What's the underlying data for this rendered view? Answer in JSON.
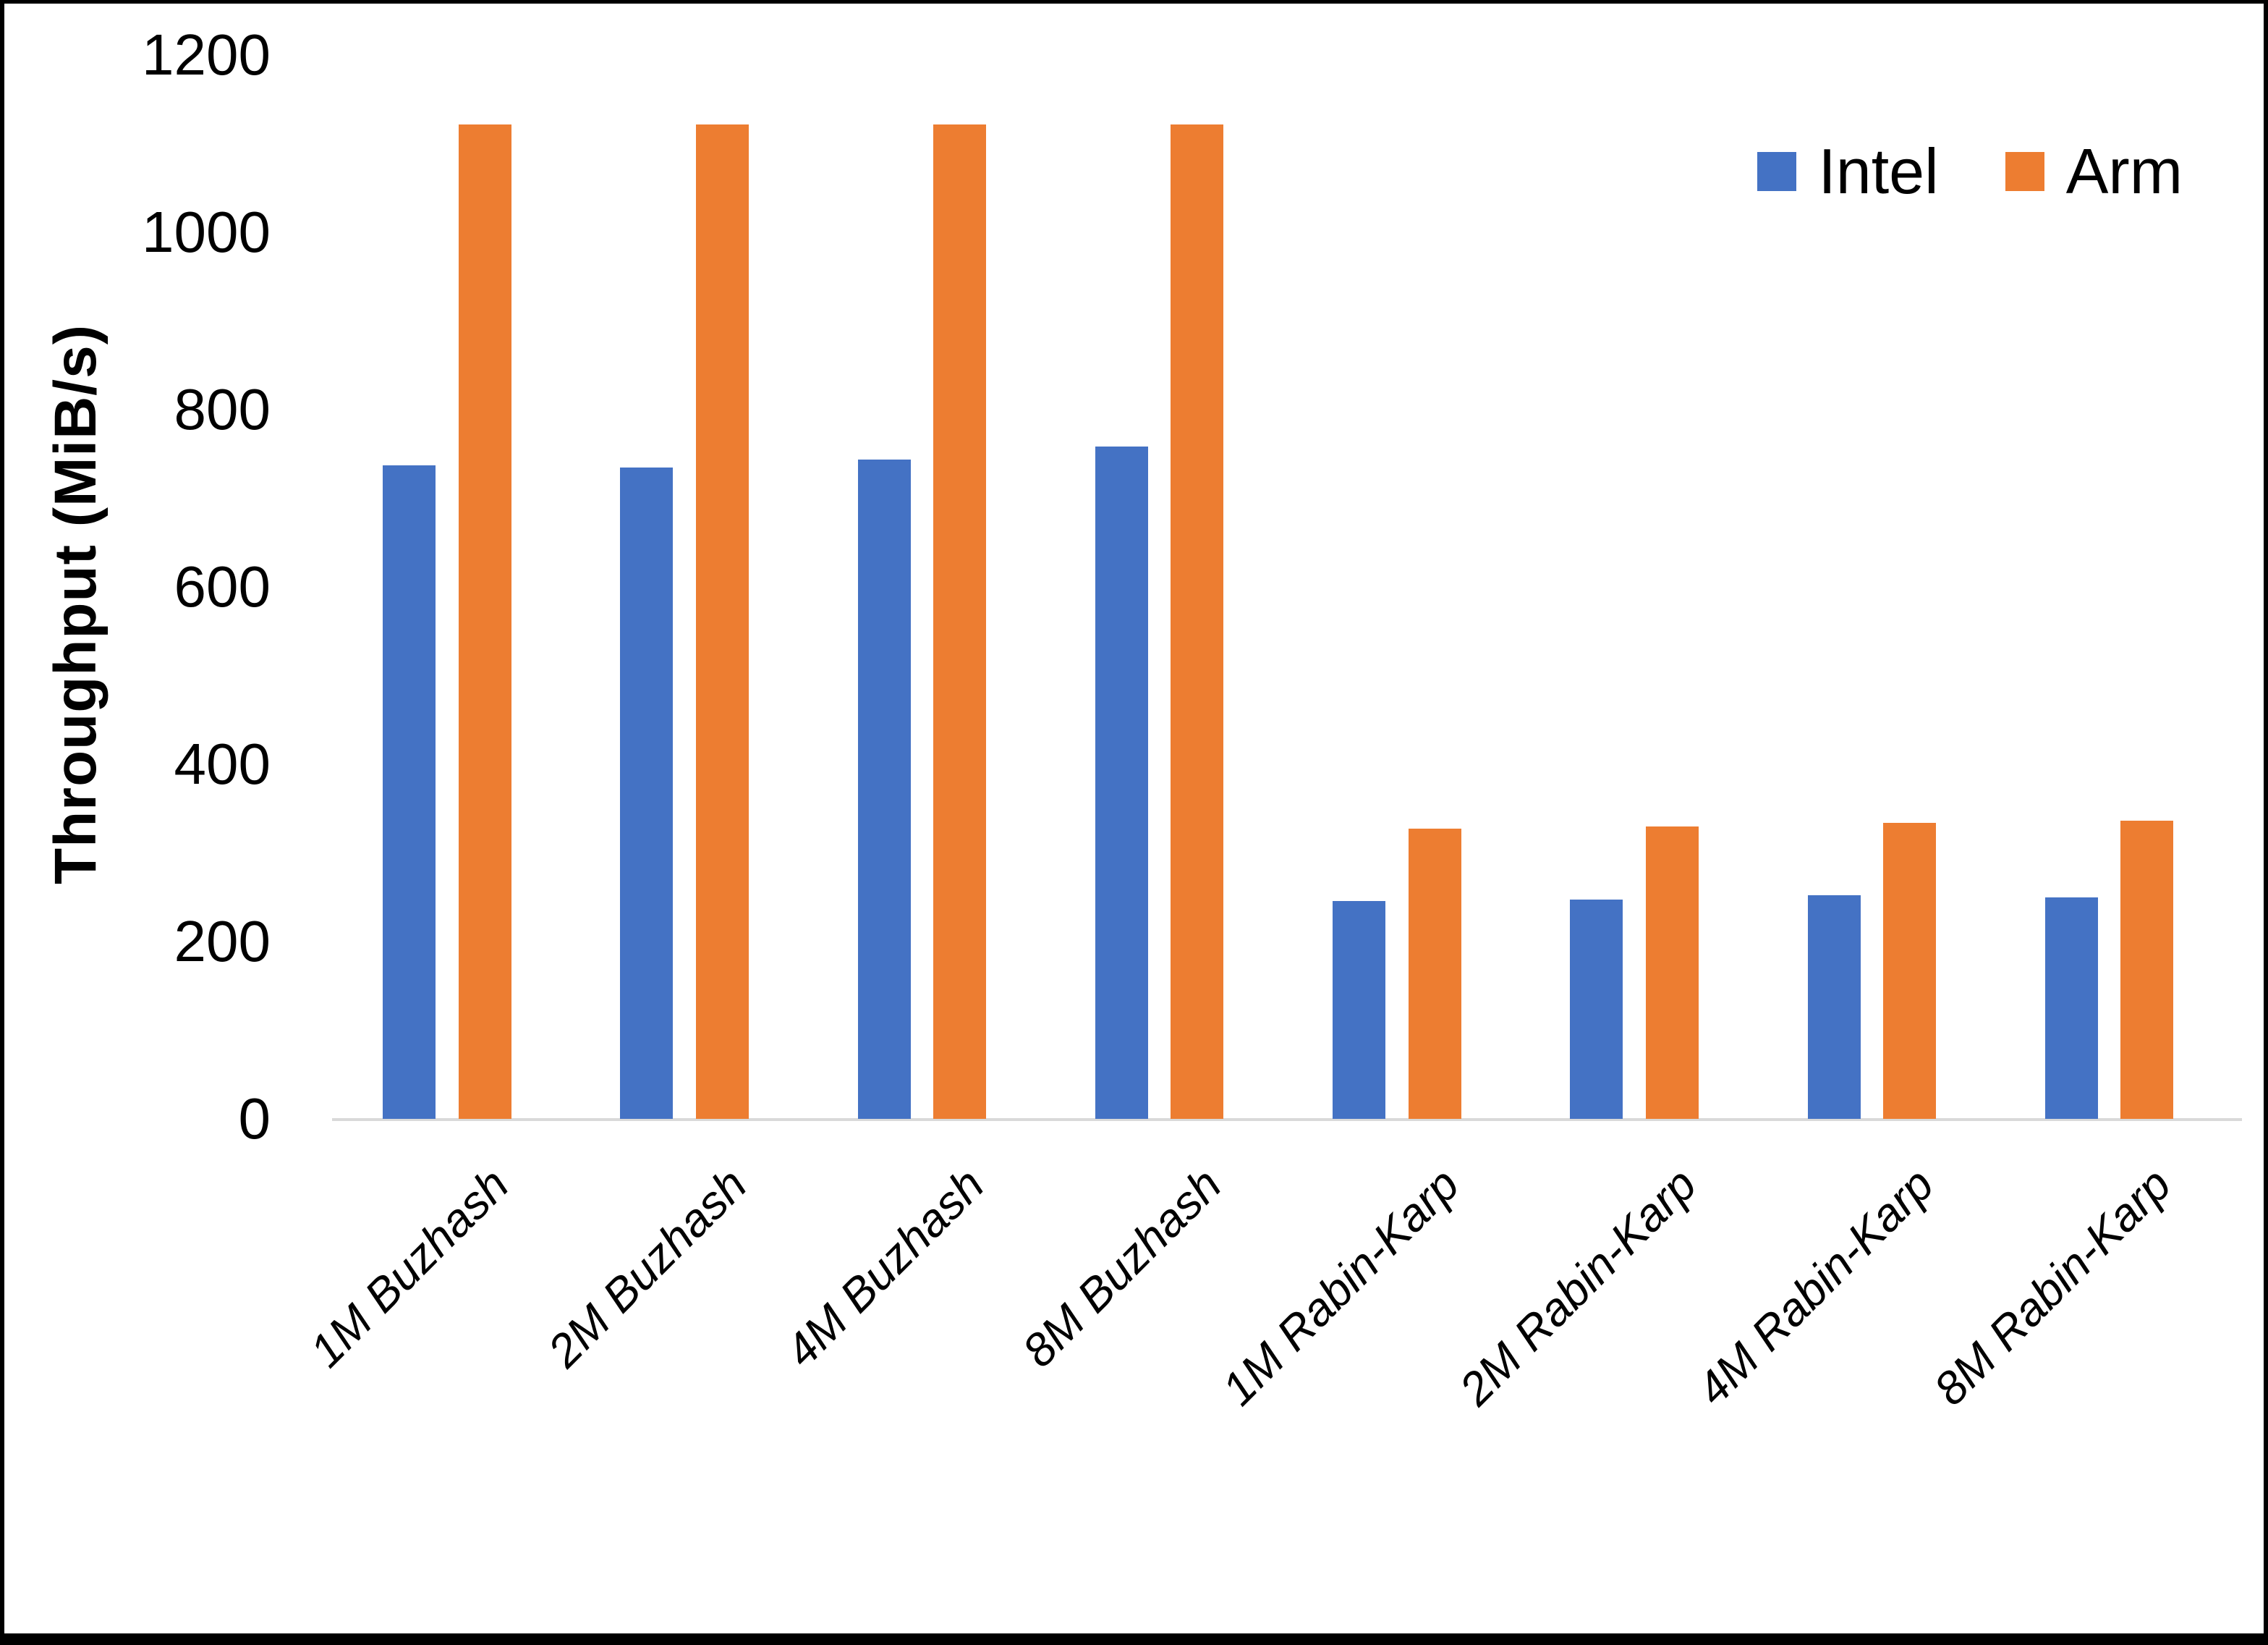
{
  "chart_data": {
    "type": "bar",
    "title": "",
    "xlabel": "",
    "ylabel": "Throughput (MiB/s)",
    "ylim": [
      0,
      1200
    ],
    "yticks": [
      0,
      200,
      400,
      600,
      800,
      1000,
      1200
    ],
    "grid": false,
    "legend_position": "top-right",
    "categories": [
      "1M Buzhash",
      "2M Buzhash",
      "4M Buzhash",
      "8M Buzhash",
      "1M Rabin-Karp",
      "2M Rabin-Karp",
      "4M Rabin-Karp",
      "8M Rabin-Karp"
    ],
    "series": [
      {
        "name": "Intel",
        "color": "#4472C4",
        "values": [
          737,
          735,
          744,
          758,
          246,
          247,
          252,
          250
        ]
      },
      {
        "name": "Arm",
        "color": "#ED7D31",
        "values": [
          1122,
          1122,
          1122,
          1122,
          327,
          330,
          334,
          336
        ]
      }
    ]
  },
  "colors": {
    "axis_line": "#D9D9D9",
    "text": "#000000",
    "frame": "#000000"
  }
}
